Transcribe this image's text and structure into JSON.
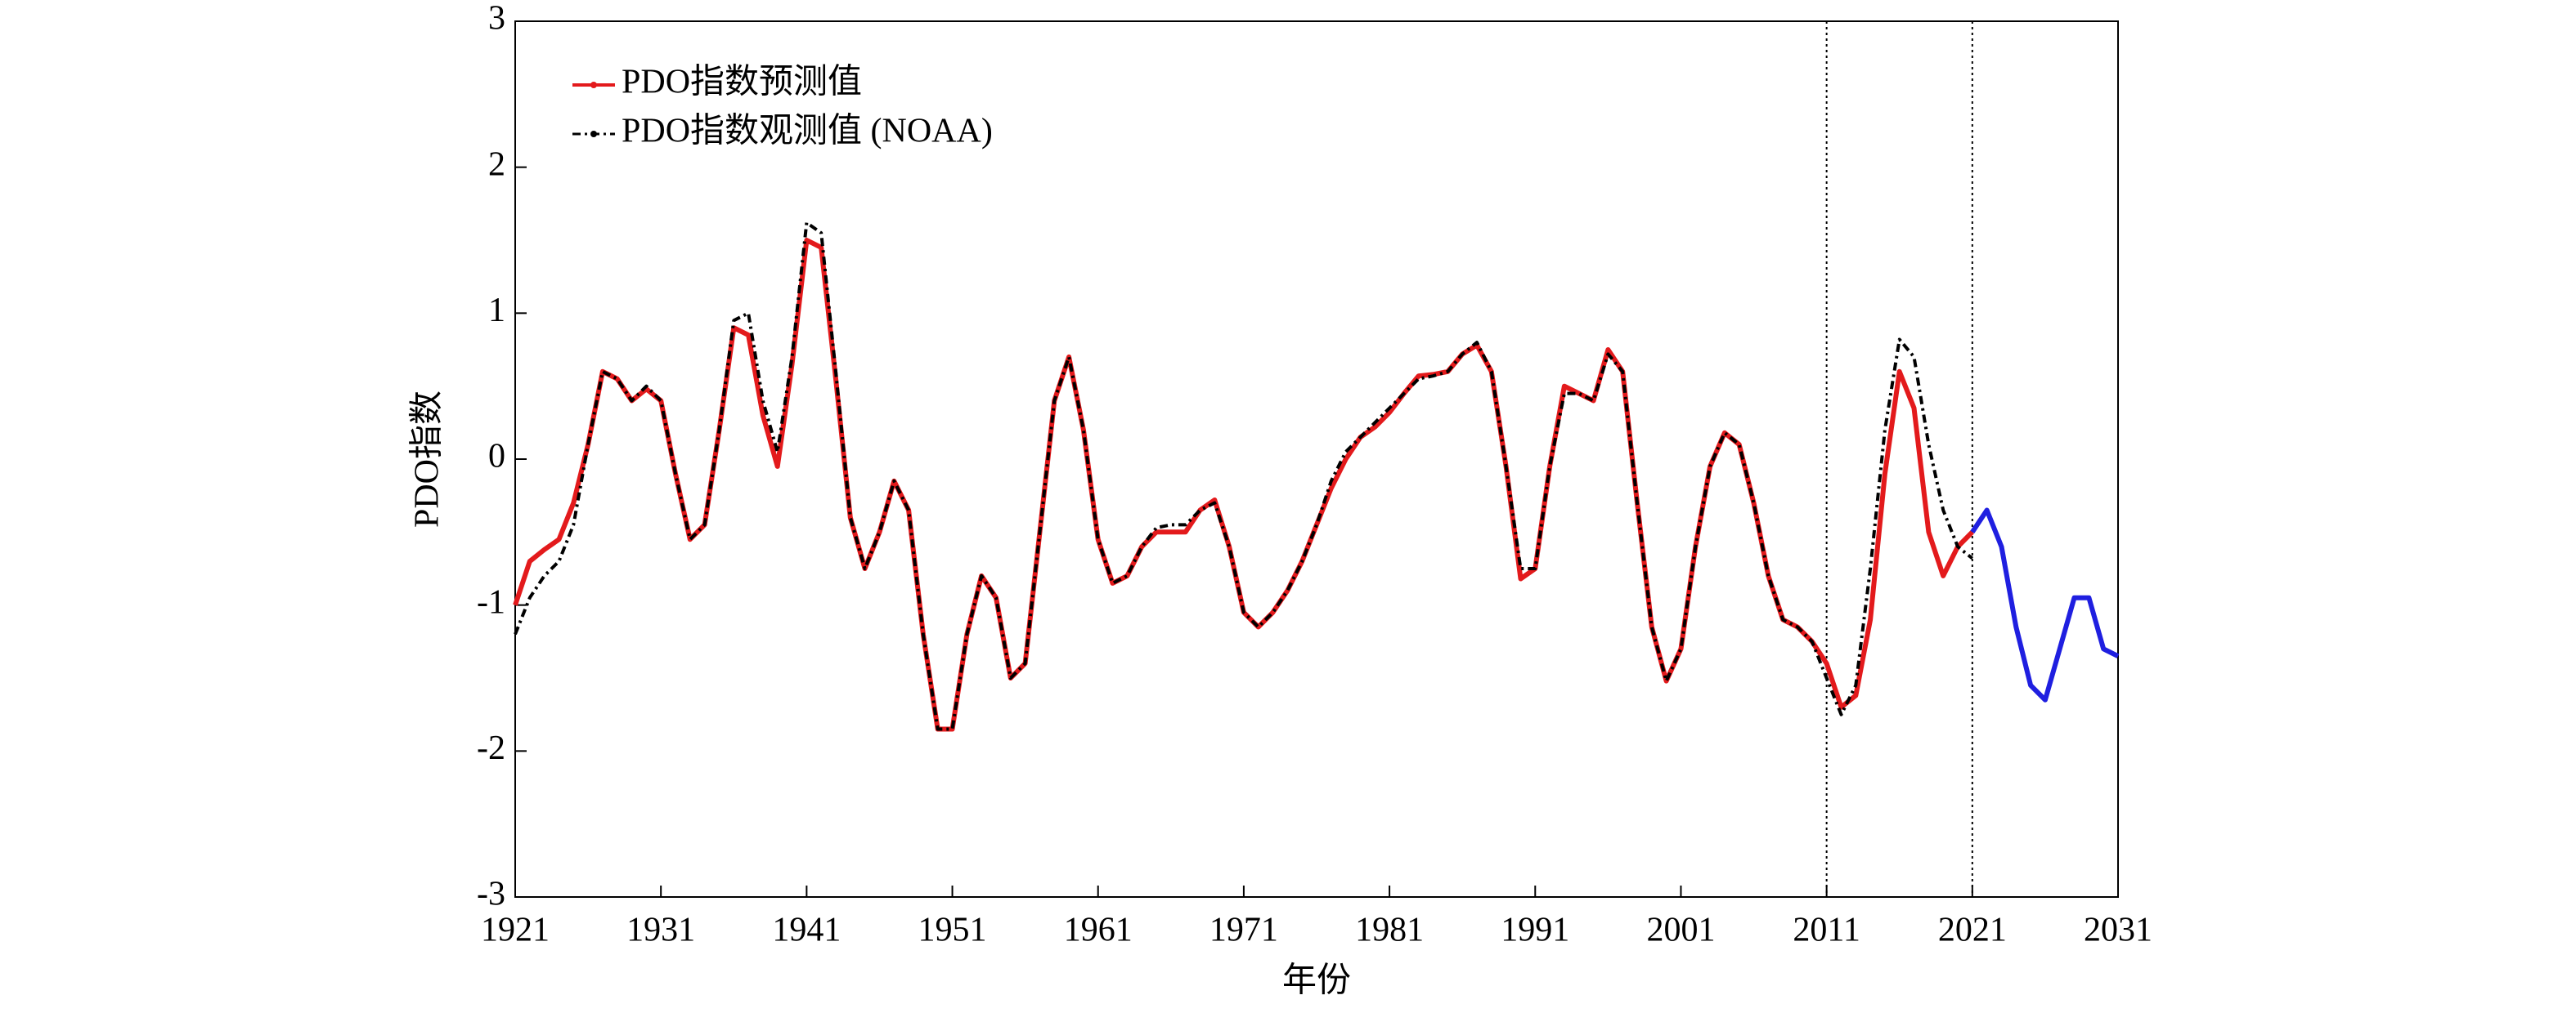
{
  "chart_data": {
    "type": "line",
    "xlabel": "年份",
    "ylabel": "PDO指数",
    "x": [
      1921,
      1922,
      1923,
      1924,
      1925,
      1926,
      1927,
      1928,
      1929,
      1930,
      1931,
      1932,
      1933,
      1934,
      1935,
      1936,
      1937,
      1938,
      1939,
      1940,
      1941,
      1942,
      1943,
      1944,
      1945,
      1946,
      1947,
      1948,
      1949,
      1950,
      1951,
      1952,
      1953,
      1954,
      1955,
      1956,
      1957,
      1958,
      1959,
      1960,
      1961,
      1962,
      1963,
      1964,
      1965,
      1966,
      1967,
      1968,
      1969,
      1970,
      1971,
      1972,
      1973,
      1974,
      1975,
      1976,
      1977,
      1978,
      1979,
      1980,
      1981,
      1982,
      1983,
      1984,
      1985,
      1986,
      1987,
      1988,
      1989,
      1990,
      1991,
      1992,
      1993,
      1994,
      1995,
      1996,
      1997,
      1998,
      1999,
      2000,
      2001,
      2002,
      2003,
      2004,
      2005,
      2006,
      2007,
      2008,
      2009,
      2010,
      2011,
      2012,
      2013,
      2014,
      2015,
      2016,
      2017,
      2018,
      2019,
      2020,
      2021
    ],
    "series": [
      {
        "name": "PDO指数预测值",
        "color": "#e31a1c",
        "style": "solid",
        "values": [
          -1.0,
          -0.7,
          -0.62,
          -0.55,
          -0.3,
          0.1,
          0.6,
          0.55,
          0.4,
          0.48,
          0.4,
          -0.1,
          -0.55,
          -0.45,
          0.2,
          0.9,
          0.85,
          0.3,
          -0.05,
          0.65,
          1.5,
          1.45,
          0.55,
          -0.4,
          -0.75,
          -0.5,
          -0.15,
          -0.35,
          -1.2,
          -1.85,
          -1.85,
          -1.2,
          -0.8,
          -0.95,
          -1.5,
          -1.4,
          -0.5,
          0.4,
          0.7,
          0.2,
          -0.55,
          -0.85,
          -0.8,
          -0.6,
          -0.5,
          -0.5,
          -0.5,
          -0.35,
          -0.28,
          -0.6,
          -1.05,
          -1.15,
          -1.05,
          -0.9,
          -0.7,
          -0.45,
          -0.2,
          0.0,
          0.15,
          0.22,
          0.32,
          0.45,
          0.57,
          0.58,
          0.6,
          0.72,
          0.78,
          0.6,
          -0.05,
          -0.82,
          -0.75,
          -0.05,
          0.5,
          0.45,
          0.4,
          0.75,
          0.6,
          -0.3,
          -1.15,
          -1.52,
          -1.3,
          -0.6,
          -0.05,
          0.18,
          0.1,
          -0.3,
          -0.8,
          -1.1,
          -1.15,
          -1.25,
          -1.4,
          -1.7,
          -1.62,
          -1.1,
          -0.1,
          0.6,
          0.35,
          -0.5,
          -0.8,
          -0.6,
          -0.5
        ]
      },
      {
        "name": "PDO指数观测值 (NOAA)",
        "color": "#000000",
        "style": "dashdot",
        "values": [
          -1.2,
          -0.95,
          -0.8,
          -0.7,
          -0.45,
          0.1,
          0.6,
          0.55,
          0.4,
          0.5,
          0.4,
          -0.1,
          -0.55,
          -0.45,
          0.2,
          0.95,
          1.0,
          0.4,
          0.05,
          0.7,
          1.62,
          1.55,
          0.6,
          -0.4,
          -0.75,
          -0.5,
          -0.15,
          -0.35,
          -1.2,
          -1.85,
          -1.85,
          -1.2,
          -0.8,
          -0.95,
          -1.5,
          -1.4,
          -0.5,
          0.4,
          0.7,
          0.2,
          -0.55,
          -0.85,
          -0.8,
          -0.6,
          -0.47,
          -0.45,
          -0.45,
          -0.35,
          -0.3,
          -0.6,
          -1.05,
          -1.15,
          -1.05,
          -0.9,
          -0.7,
          -0.45,
          -0.15,
          0.05,
          0.15,
          0.25,
          0.35,
          0.45,
          0.55,
          0.57,
          0.6,
          0.72,
          0.8,
          0.6,
          -0.05,
          -0.75,
          -0.75,
          -0.05,
          0.45,
          0.45,
          0.4,
          0.72,
          0.6,
          -0.3,
          -1.15,
          -1.52,
          -1.3,
          -0.6,
          -0.05,
          0.18,
          0.1,
          -0.3,
          -0.8,
          -1.1,
          -1.15,
          -1.25,
          -1.5,
          -1.75,
          -1.55,
          -0.75,
          0.2,
          0.82,
          0.7,
          0.1,
          -0.35,
          -0.6,
          -0.68
        ]
      },
      {
        "color": "#1f1fe0",
        "style": "solid",
        "x": [
          2021,
          2022,
          2023,
          2024,
          2025,
          2026,
          2027,
          2028,
          2029,
          2030,
          2031
        ],
        "values": [
          -0.5,
          -0.35,
          -0.6,
          -1.15,
          -1.55,
          -1.65,
          -1.3,
          -0.95,
          -0.95,
          -1.3,
          -1.35
        ]
      }
    ],
    "vlines": [
      2011,
      2021
    ],
    "xlim": [
      1921,
      2031
    ],
    "xticks": [
      1921,
      1931,
      1941,
      1951,
      1961,
      1971,
      1981,
      1991,
      2001,
      2011,
      2021,
      2031
    ],
    "ylim": [
      -3,
      3
    ],
    "yticks": [
      -3,
      -2,
      -1,
      0,
      1,
      2,
      3
    ],
    "legend": "upper-left",
    "grid": false
  }
}
